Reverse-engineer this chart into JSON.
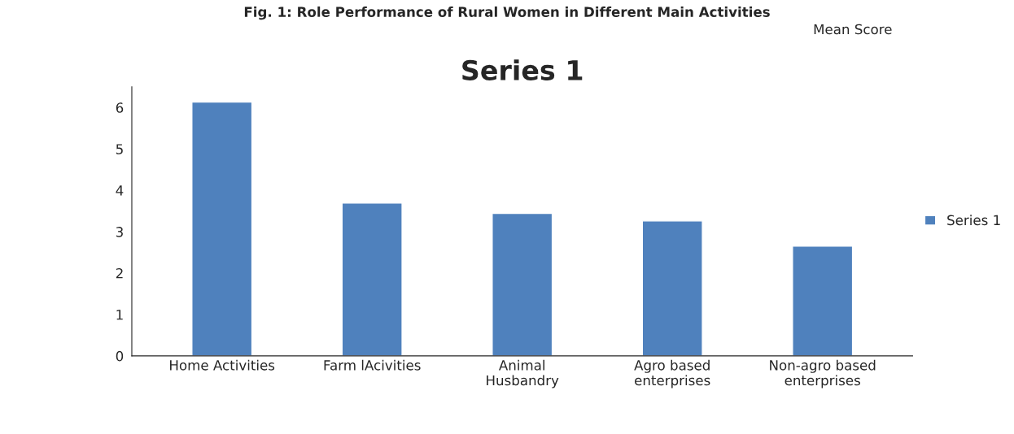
{
  "chart_data": {
    "type": "bar",
    "title": "Series 1",
    "categories": [
      "Home Activities",
      "Farm lAcivities",
      "Animal\nHusbandry",
      "Agro based\nenterprises",
      "Non-agro based\nenterprises"
    ],
    "series": [
      {
        "name": "Series 1",
        "color": "#4f81bd",
        "values": [
          6.13,
          3.69,
          3.44,
          3.26,
          2.65
        ]
      }
    ],
    "ylim": [
      0,
      6.5
    ],
    "yticks": [
      0,
      1,
      2,
      3,
      4,
      5,
      6
    ],
    "grid": false,
    "legend": "right",
    "annotations": [
      "Fig. 1: Role Performance of Rural Women in Different Main Activities",
      "Mean Score"
    ]
  }
}
